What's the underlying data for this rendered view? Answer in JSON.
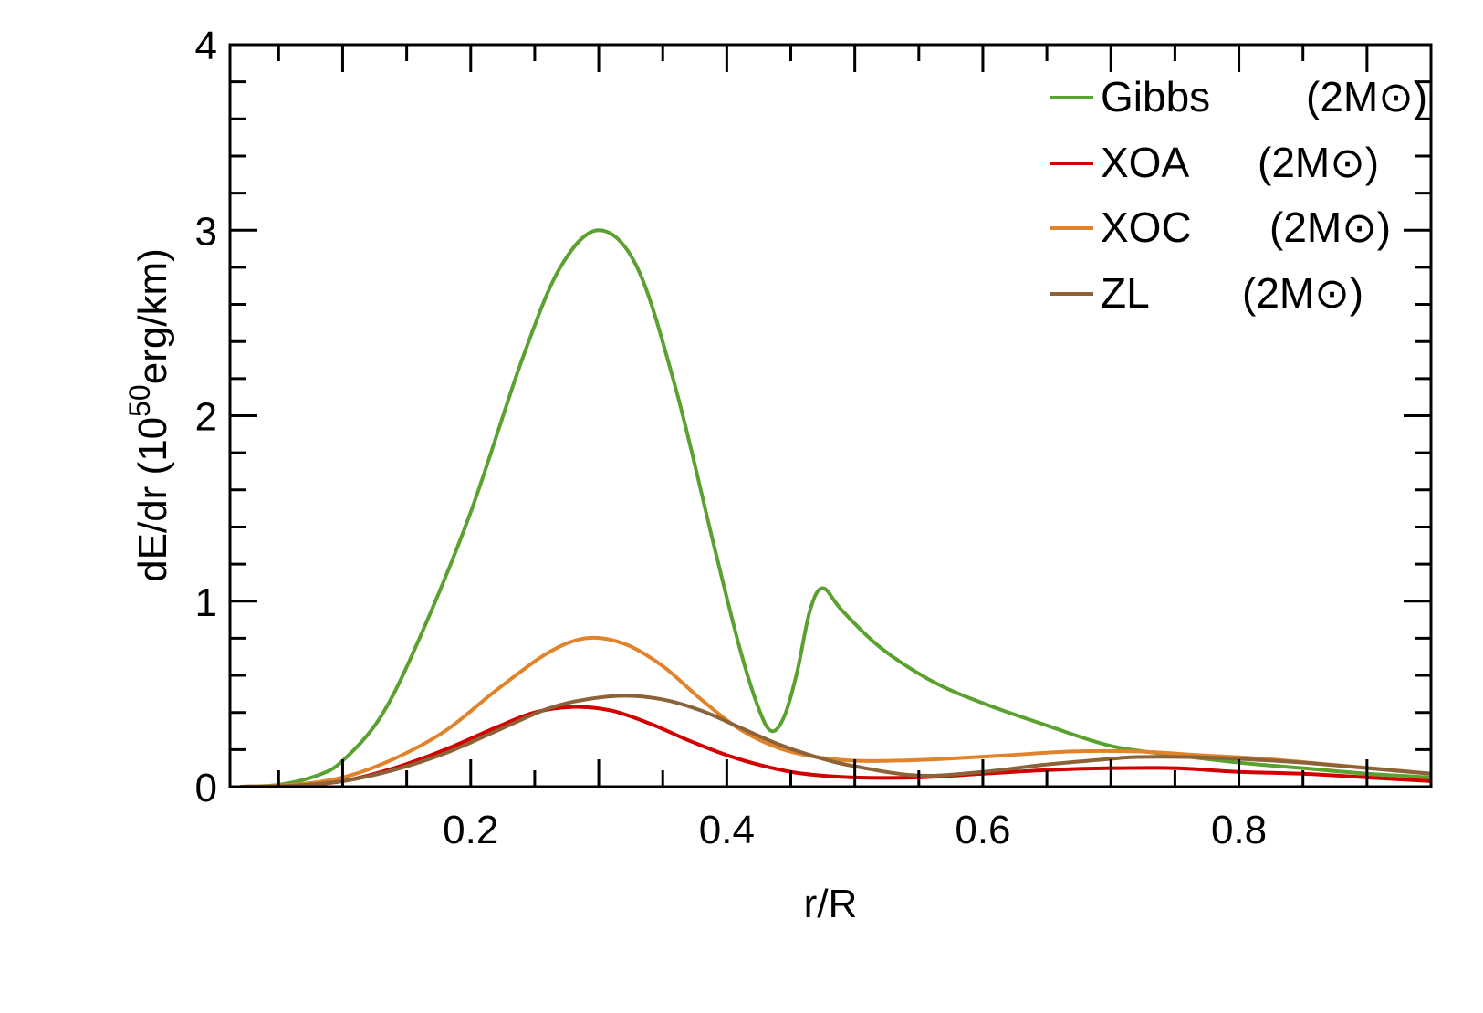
{
  "chart_data": {
    "type": "line",
    "title": "",
    "xlabel": "r/R",
    "ylabel": {
      "prefix": "dE/dr (10",
      "sup": "50",
      "suffix": "erg/km)"
    },
    "xlim": [
      0.012,
      0.95
    ],
    "ylim": [
      0,
      4
    ],
    "xticks": [
      0.2,
      0.4,
      0.6,
      0.8
    ],
    "xtick_labels": [
      "0.2",
      "0.4",
      "0.6",
      "0.8"
    ],
    "yticks": [
      0,
      1,
      2,
      3,
      4
    ],
    "ytick_labels": [
      "0",
      "1",
      "2",
      "3",
      "4"
    ],
    "grid": false,
    "legend_position": "top-right",
    "series": [
      {
        "name": "Gibbs",
        "mass_label": "(2M⊙)",
        "color": "#5ba12f",
        "x": [
          0.02,
          0.05,
          0.08,
          0.1,
          0.13,
          0.16,
          0.2,
          0.24,
          0.27,
          0.3,
          0.33,
          0.36,
          0.39,
          0.41,
          0.425,
          0.435,
          0.445,
          0.455,
          0.465,
          0.475,
          0.49,
          0.52,
          0.56,
          0.6,
          0.65,
          0.7,
          0.75,
          0.8,
          0.85,
          0.9,
          0.95
        ],
        "y": [
          0.0,
          0.01,
          0.06,
          0.14,
          0.38,
          0.8,
          1.48,
          2.3,
          2.8,
          3.0,
          2.8,
          2.15,
          1.3,
          0.75,
          0.42,
          0.3,
          0.38,
          0.62,
          0.95,
          1.07,
          0.95,
          0.75,
          0.57,
          0.45,
          0.33,
          0.22,
          0.17,
          0.13,
          0.1,
          0.07,
          0.05
        ]
      },
      {
        "name": "XOA",
        "mass_label": "(2M⊙)",
        "color": "#d40000",
        "x": [
          0.02,
          0.06,
          0.1,
          0.14,
          0.18,
          0.22,
          0.25,
          0.28,
          0.31,
          0.34,
          0.37,
          0.4,
          0.43,
          0.46,
          0.5,
          0.55,
          0.6,
          0.65,
          0.7,
          0.75,
          0.8,
          0.85,
          0.9,
          0.95
        ],
        "y": [
          0.0,
          0.005,
          0.03,
          0.1,
          0.2,
          0.32,
          0.4,
          0.43,
          0.41,
          0.34,
          0.25,
          0.17,
          0.11,
          0.07,
          0.05,
          0.05,
          0.07,
          0.09,
          0.1,
          0.1,
          0.08,
          0.07,
          0.05,
          0.03
        ]
      },
      {
        "name": "XOC",
        "mass_label": "(2M⊙)",
        "color": "#e0832a",
        "x": [
          0.02,
          0.06,
          0.1,
          0.14,
          0.18,
          0.22,
          0.26,
          0.29,
          0.32,
          0.35,
          0.38,
          0.41,
          0.44,
          0.47,
          0.5,
          0.53,
          0.57,
          0.62,
          0.67,
          0.72,
          0.77,
          0.82,
          0.87,
          0.92,
          0.95
        ],
        "y": [
          0.0,
          0.01,
          0.05,
          0.15,
          0.3,
          0.52,
          0.72,
          0.8,
          0.77,
          0.65,
          0.47,
          0.31,
          0.21,
          0.16,
          0.14,
          0.14,
          0.15,
          0.17,
          0.19,
          0.19,
          0.17,
          0.15,
          0.12,
          0.09,
          0.07
        ]
      },
      {
        "name": "ZL",
        "mass_label": "(2M⊙)",
        "color": "#8c6239",
        "x": [
          0.02,
          0.06,
          0.1,
          0.14,
          0.18,
          0.22,
          0.26,
          0.29,
          0.32,
          0.35,
          0.38,
          0.41,
          0.44,
          0.47,
          0.5,
          0.55,
          0.6,
          0.65,
          0.7,
          0.72,
          0.76,
          0.8,
          0.85,
          0.9,
          0.95
        ],
        "y": [
          0.0,
          0.005,
          0.03,
          0.09,
          0.18,
          0.3,
          0.42,
          0.47,
          0.49,
          0.47,
          0.41,
          0.32,
          0.23,
          0.16,
          0.11,
          0.06,
          0.08,
          0.12,
          0.15,
          0.16,
          0.16,
          0.15,
          0.13,
          0.1,
          0.07
        ]
      }
    ]
  }
}
